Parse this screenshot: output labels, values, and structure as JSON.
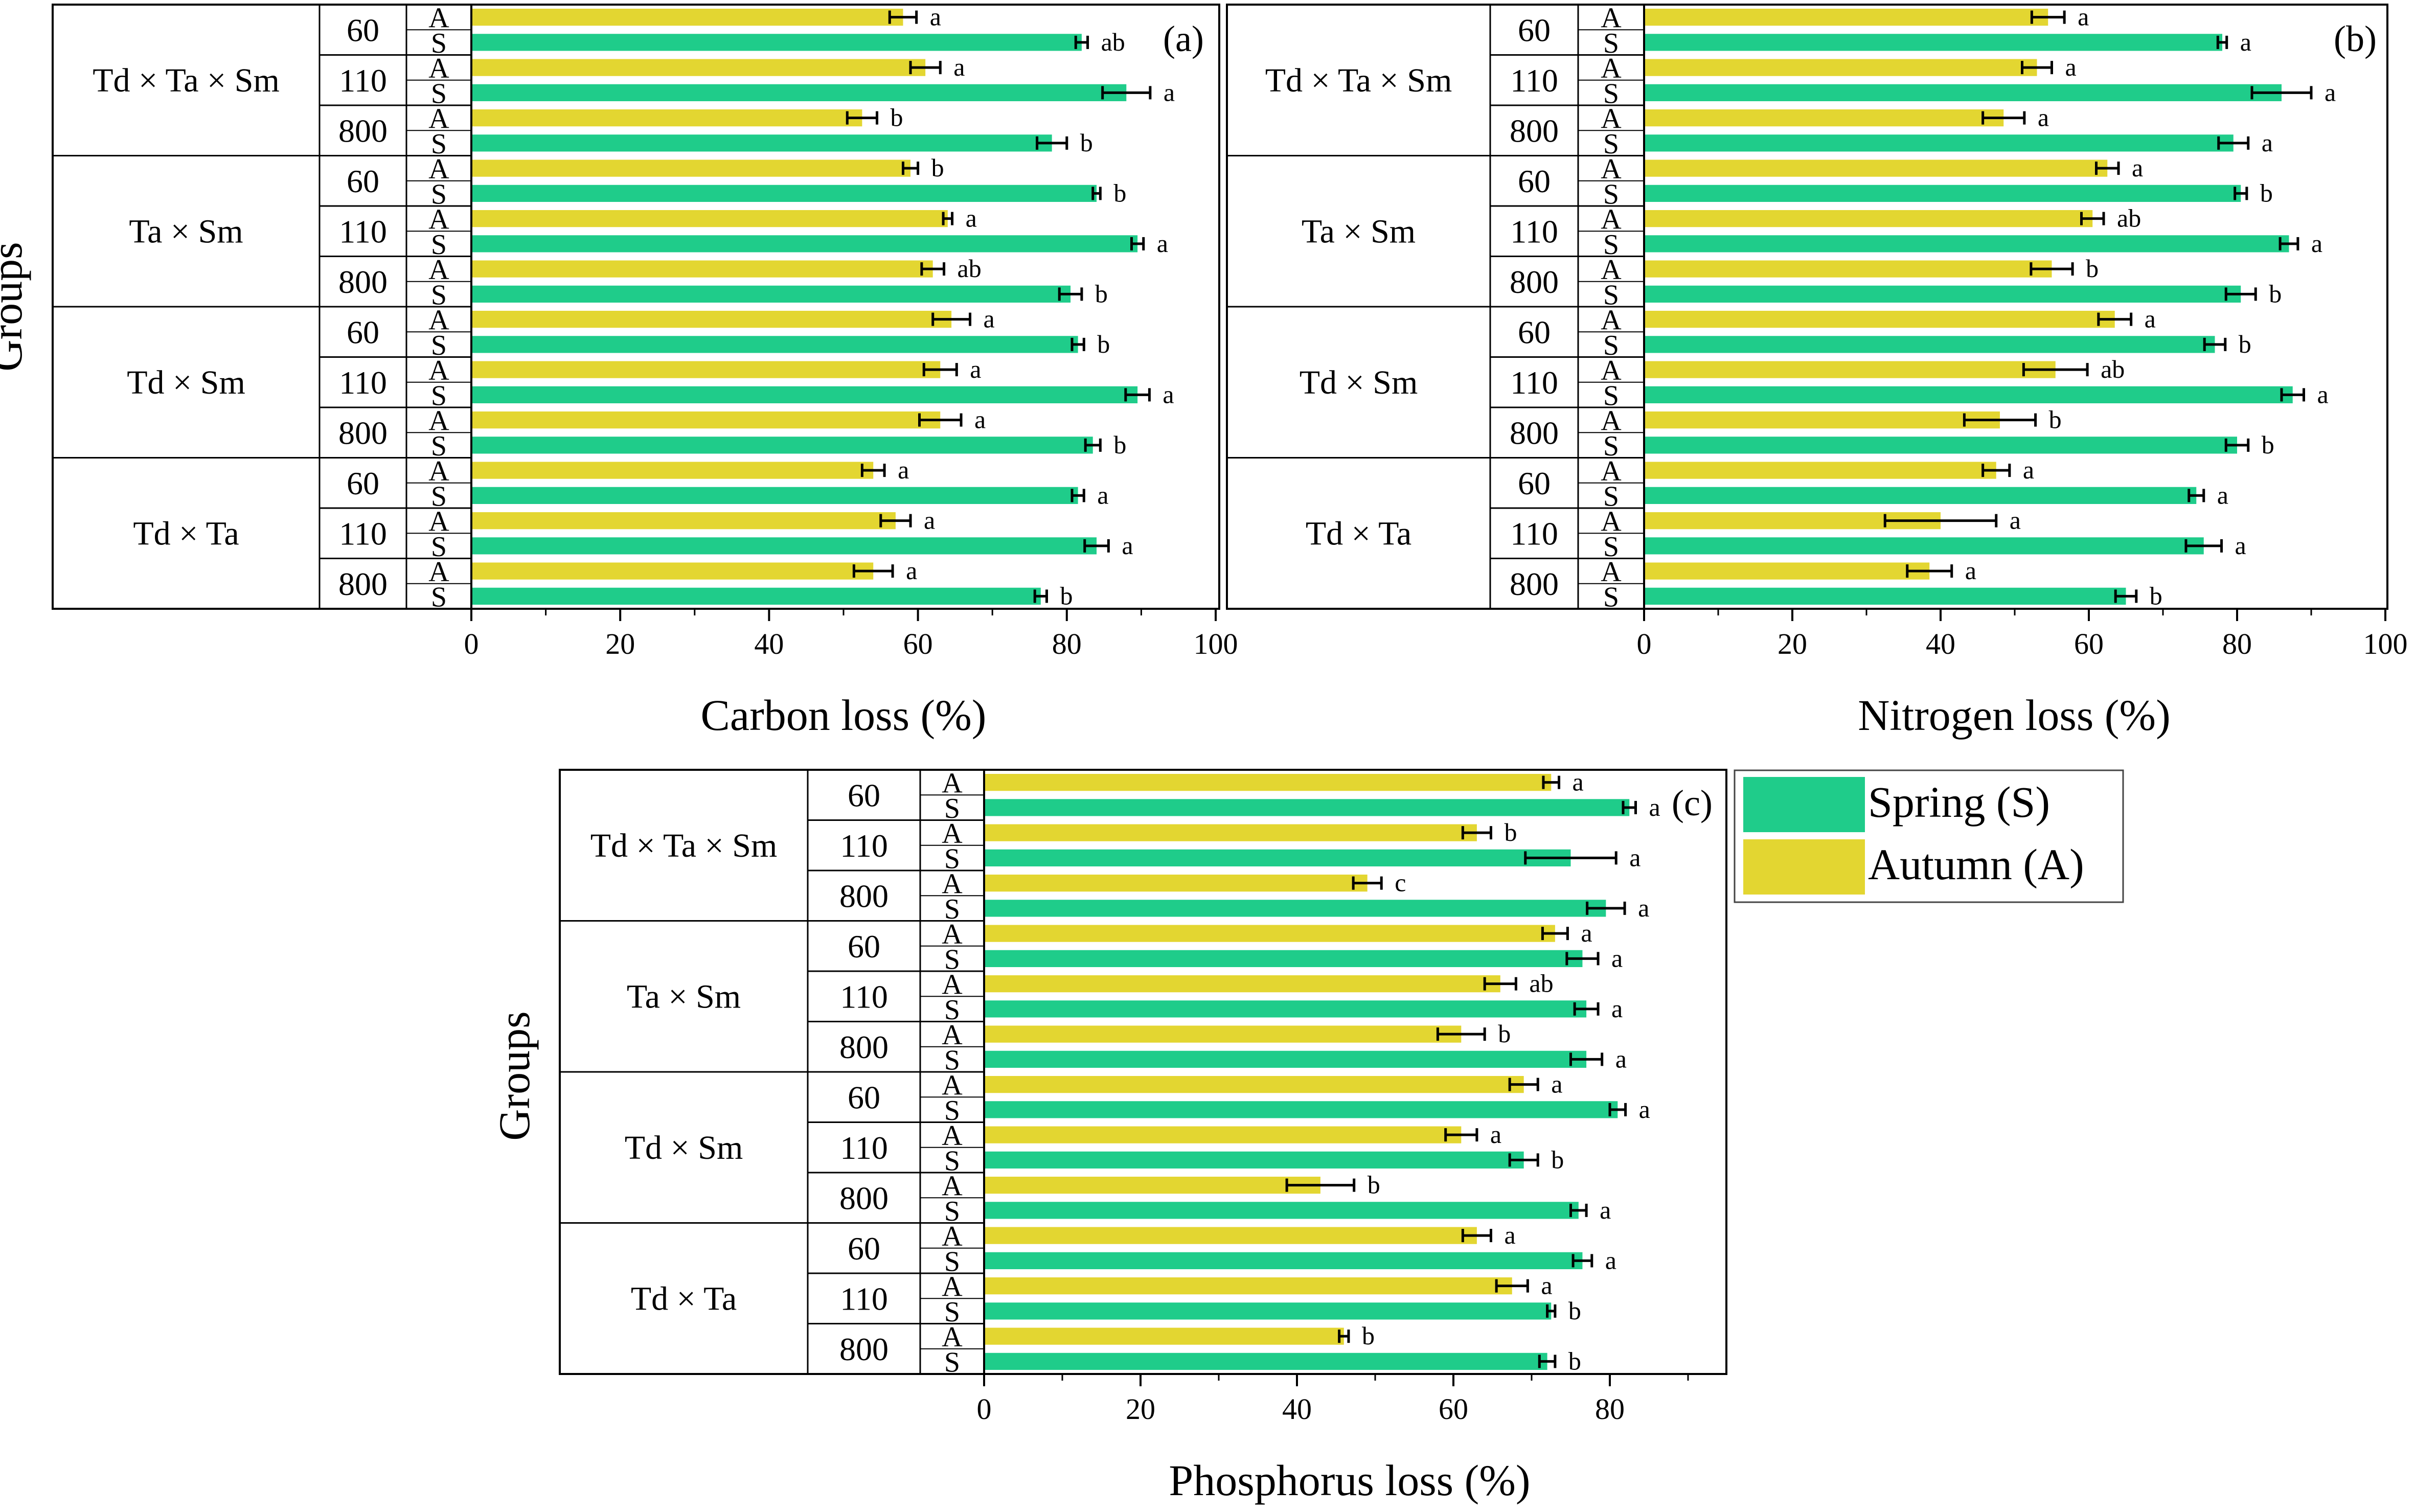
{
  "legend": {
    "items": [
      {
        "label": "Spring (S)",
        "color": "#1fcc8a"
      },
      {
        "label": "Autumn (A)",
        "color": "#e3d631"
      }
    ]
  },
  "colors": {
    "spring": "#1fcc8a",
    "autumn": "#e3d631",
    "frame": "#000000"
  },
  "chart_data": [
    {
      "type": "bar",
      "orientation": "horizontal",
      "panel_label": "(a)",
      "xlabel": "Carbon loss (%)",
      "ylabel": "Groups",
      "xlim": [
        0,
        100
      ],
      "xticks": [
        0,
        20,
        40,
        60,
        80,
        100
      ],
      "groups": [
        {
          "name": "Td × Ta × Sm",
          "sizes": [
            {
              "size": "60",
              "A": {
                "value": 58,
                "err": 1.8,
                "sig": "a"
              },
              "S": {
                "value": 82,
                "err": 0.8,
                "sig": "ab"
              }
            },
            {
              "size": "110",
              "A": {
                "value": 61,
                "err": 2.0,
                "sig": "a"
              },
              "S": {
                "value": 88,
                "err": 3.2,
                "sig": "a"
              }
            },
            {
              "size": "800",
              "A": {
                "value": 52.5,
                "err": 2.0,
                "sig": "b"
              },
              "S": {
                "value": 78,
                "err": 2.0,
                "sig": "b"
              }
            }
          ]
        },
        {
          "name": "Ta × Sm",
          "sizes": [
            {
              "size": "60",
              "A": {
                "value": 59,
                "err": 1.0,
                "sig": "b"
              },
              "S": {
                "value": 84,
                "err": 0.5,
                "sig": "b"
              }
            },
            {
              "size": "110",
              "A": {
                "value": 64,
                "err": 0.6,
                "sig": "a"
              },
              "S": {
                "value": 89.5,
                "err": 0.8,
                "sig": "a"
              }
            },
            {
              "size": "800",
              "A": {
                "value": 62,
                "err": 1.5,
                "sig": "ab"
              },
              "S": {
                "value": 80.5,
                "err": 1.5,
                "sig": "b"
              }
            }
          ]
        },
        {
          "name": "Td × Sm",
          "sizes": [
            {
              "size": "60",
              "A": {
                "value": 64.5,
                "err": 2.5,
                "sig": "a"
              },
              "S": {
                "value": 81.5,
                "err": 0.8,
                "sig": "b"
              }
            },
            {
              "size": "110",
              "A": {
                "value": 63,
                "err": 2.2,
                "sig": "a"
              },
              "S": {
                "value": 89.5,
                "err": 1.6,
                "sig": "a"
              }
            },
            {
              "size": "800",
              "A": {
                "value": 63,
                "err": 2.8,
                "sig": "a"
              },
              "S": {
                "value": 83.5,
                "err": 1.0,
                "sig": "b"
              }
            }
          ]
        },
        {
          "name": "Td × Ta",
          "sizes": [
            {
              "size": "60",
              "A": {
                "value": 54,
                "err": 1.5,
                "sig": "a"
              },
              "S": {
                "value": 81.5,
                "err": 0.8,
                "sig": "a"
              }
            },
            {
              "size": "110",
              "A": {
                "value": 57,
                "err": 2.0,
                "sig": "a"
              },
              "S": {
                "value": 84,
                "err": 1.6,
                "sig": "a"
              }
            },
            {
              "size": "800",
              "A": {
                "value": 54,
                "err": 2.6,
                "sig": "a"
              },
              "S": {
                "value": 76.5,
                "err": 0.8,
                "sig": "b"
              }
            }
          ]
        }
      ]
    },
    {
      "type": "bar",
      "orientation": "horizontal",
      "panel_label": "(b)",
      "xlabel": "Nitrogen loss (%)",
      "ylabel": "",
      "xlim": [
        0,
        100
      ],
      "xticks": [
        0,
        20,
        40,
        60,
        80,
        100
      ],
      "groups": [
        {
          "name": "Td × Ta × Sm",
          "sizes": [
            {
              "size": "60",
              "A": {
                "value": 54.5,
                "err": 2.2,
                "sig": "a"
              },
              "S": {
                "value": 78,
                "err": 0.6,
                "sig": "a"
              }
            },
            {
              "size": "110",
              "A": {
                "value": 53,
                "err": 2.0,
                "sig": "a"
              },
              "S": {
                "value": 86,
                "err": 4.0,
                "sig": "a"
              }
            },
            {
              "size": "800",
              "A": {
                "value": 48.5,
                "err": 2.8,
                "sig": "a"
              },
              "S": {
                "value": 79.5,
                "err": 2.0,
                "sig": "a"
              }
            }
          ]
        },
        {
          "name": "Ta × Sm",
          "sizes": [
            {
              "size": "60",
              "A": {
                "value": 62.5,
                "err": 1.5,
                "sig": "a"
              },
              "S": {
                "value": 80.5,
                "err": 0.8,
                "sig": "b"
              }
            },
            {
              "size": "110",
              "A": {
                "value": 60.5,
                "err": 1.5,
                "sig": "ab"
              },
              "S": {
                "value": 87,
                "err": 1.2,
                "sig": "a"
              }
            },
            {
              "size": "800",
              "A": {
                "value": 55,
                "err": 2.8,
                "sig": "b"
              },
              "S": {
                "value": 80.5,
                "err": 2.0,
                "sig": "b"
              }
            }
          ]
        },
        {
          "name": "Td × Sm",
          "sizes": [
            {
              "size": "60",
              "A": {
                "value": 63.5,
                "err": 2.2,
                "sig": "a"
              },
              "S": {
                "value": 77,
                "err": 1.4,
                "sig": "b"
              }
            },
            {
              "size": "110",
              "A": {
                "value": 55.5,
                "err": 4.3,
                "sig": "ab"
              },
              "S": {
                "value": 87.5,
                "err": 1.5,
                "sig": "a"
              }
            },
            {
              "size": "800",
              "A": {
                "value": 48,
                "err": 4.8,
                "sig": "b"
              },
              "S": {
                "value": 80,
                "err": 1.5,
                "sig": "b"
              }
            }
          ]
        },
        {
          "name": "Td × Ta",
          "sizes": [
            {
              "size": "60",
              "A": {
                "value": 47.5,
                "err": 1.8,
                "sig": "a"
              },
              "S": {
                "value": 74.5,
                "err": 1.0,
                "sig": "a"
              }
            },
            {
              "size": "110",
              "A": {
                "value": 40,
                "err": 7.5,
                "sig": "a"
              },
              "S": {
                "value": 75.5,
                "err": 2.4,
                "sig": "a"
              }
            },
            {
              "size": "800",
              "A": {
                "value": 38.5,
                "err": 3.0,
                "sig": "a"
              },
              "S": {
                "value": 65,
                "err": 1.4,
                "sig": "b"
              }
            }
          ]
        }
      ]
    },
    {
      "type": "bar",
      "orientation": "horizontal",
      "panel_label": "(c)",
      "xlabel": "Phosphorus loss (%)",
      "ylabel": "Groups",
      "xlim": [
        0,
        95
      ],
      "xticks": [
        0,
        20,
        40,
        60,
        80
      ],
      "groups": [
        {
          "name": "Td × Ta × Sm",
          "sizes": [
            {
              "size": "60",
              "A": {
                "value": 72.5,
                "err": 1.0,
                "sig": "a"
              },
              "S": {
                "value": 82.5,
                "err": 0.8,
                "sig": "a"
              }
            },
            {
              "size": "110",
              "A": {
                "value": 63,
                "err": 1.8,
                "sig": "b"
              },
              "S": {
                "value": 75,
                "err": 5.8,
                "sig": "a"
              }
            },
            {
              "size": "800",
              "A": {
                "value": 49,
                "err": 1.8,
                "sig": "c"
              },
              "S": {
                "value": 79.5,
                "err": 2.4,
                "sig": "a"
              }
            }
          ]
        },
        {
          "name": "Ta × Sm",
          "sizes": [
            {
              "size": "60",
              "A": {
                "value": 73,
                "err": 1.6,
                "sig": "a"
              },
              "S": {
                "value": 76.5,
                "err": 2.0,
                "sig": "a"
              }
            },
            {
              "size": "110",
              "A": {
                "value": 66,
                "err": 2.0,
                "sig": "ab"
              },
              "S": {
                "value": 77,
                "err": 1.5,
                "sig": "a"
              }
            },
            {
              "size": "800",
              "A": {
                "value": 61,
                "err": 3.0,
                "sig": "b"
              },
              "S": {
                "value": 77,
                "err": 2.0,
                "sig": "a"
              }
            }
          ]
        },
        {
          "name": "Td × Sm",
          "sizes": [
            {
              "size": "60",
              "A": {
                "value": 69,
                "err": 1.8,
                "sig": "a"
              },
              "S": {
                "value": 81,
                "err": 1.0,
                "sig": "a"
              }
            },
            {
              "size": "110",
              "A": {
                "value": 61,
                "err": 2.0,
                "sig": "a"
              },
              "S": {
                "value": 69,
                "err": 1.8,
                "sig": "b"
              }
            },
            {
              "size": "800",
              "A": {
                "value": 43,
                "err": 4.3,
                "sig": "b"
              },
              "S": {
                "value": 76,
                "err": 1.0,
                "sig": "a"
              }
            }
          ]
        },
        {
          "name": "Td × Ta",
          "sizes": [
            {
              "size": "60",
              "A": {
                "value": 63,
                "err": 1.8,
                "sig": "a"
              },
              "S": {
                "value": 76.5,
                "err": 1.2,
                "sig": "a"
              }
            },
            {
              "size": "110",
              "A": {
                "value": 67.5,
                "err": 2.0,
                "sig": "a"
              },
              "S": {
                "value": 72.5,
                "err": 0.5,
                "sig": "b"
              }
            },
            {
              "size": "800",
              "A": {
                "value": 46,
                "err": 0.6,
                "sig": "b"
              },
              "S": {
                "value": 72,
                "err": 1.0,
                "sig": "b"
              }
            }
          ]
        }
      ]
    }
  ]
}
